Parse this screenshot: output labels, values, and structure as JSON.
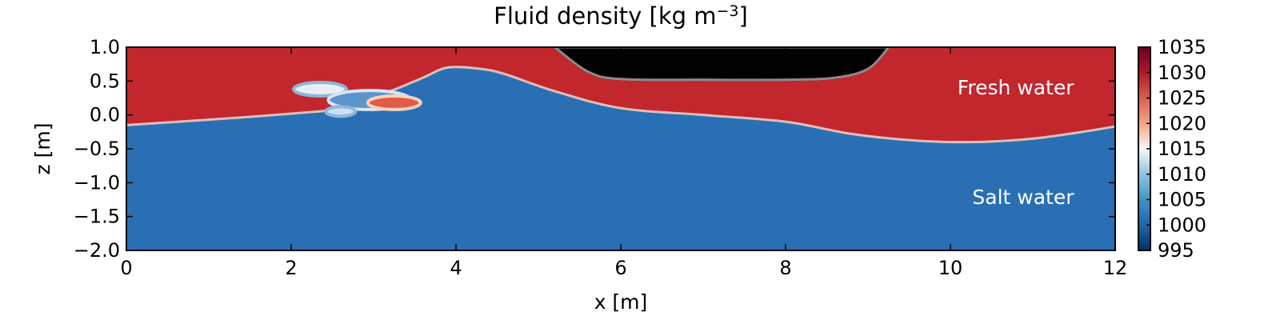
{
  "chart_data": {
    "type": "heatmap",
    "title_main": "Fluid density [kg m",
    "title_exp": "−3",
    "title_close": "]",
    "xlabel": "x [m]",
    "ylabel": "z [m]",
    "xlim": [
      0,
      12
    ],
    "ylim": [
      -2.0,
      1.0
    ],
    "xticks": [
      0,
      2,
      4,
      6,
      8,
      10,
      12
    ],
    "xtick_labels": [
      "0",
      "2",
      "4",
      "6",
      "8",
      "10",
      "12"
    ],
    "yticks": [
      1.0,
      0.5,
      0.0,
      -0.5,
      -1.0,
      -1.5,
      -2.0
    ],
    "ytick_labels": [
      "1.0",
      "0.5",
      "0.0",
      "−0.5",
      "−1.0",
      "−1.5",
      "−2.0"
    ],
    "colorbar": {
      "range": [
        995,
        1035
      ],
      "ticks": [
        1035,
        1030,
        1025,
        1020,
        1015,
        1010,
        1005,
        1000,
        995
      ],
      "tick_labels": [
        "1035",
        "1030",
        "1025",
        "1020",
        "1015",
        "1010",
        "1005",
        "1000",
        "995"
      ],
      "colors": [
        "#053061",
        "#2166ac",
        "#4393c3",
        "#92c5de",
        "#f7f7f7",
        "#f4a582",
        "#d6604d",
        "#b2182b",
        "#67001f"
      ]
    },
    "regions": {
      "upper_color": "#c1272d",
      "lower_color": "#2a6fb3",
      "obstacle_color": "#000000"
    },
    "interface": {
      "x": [
        0,
        1,
        2,
        2.6,
        3.2,
        3.6,
        3.9,
        4.3,
        4.6,
        5.2,
        6.0,
        7.0,
        8.0,
        8.8,
        9.6,
        10.3,
        11.0,
        11.6,
        12
      ],
      "z": [
        -0.15,
        -0.07,
        0.02,
        0.1,
        0.35,
        0.55,
        0.7,
        0.68,
        0.6,
        0.35,
        0.1,
        0.0,
        -0.1,
        -0.28,
        -0.38,
        -0.4,
        -0.35,
        -0.25,
        -0.17
      ]
    },
    "obstacle": {
      "x": [
        5.2,
        5.6,
        6.0,
        7.0,
        8.0,
        8.6,
        9.0,
        9.25
      ],
      "z": [
        1.0,
        0.64,
        0.53,
        0.52,
        0.52,
        0.55,
        0.68,
        1.0
      ]
    },
    "annotations": [
      {
        "label": "Fresh water",
        "x": 11.5,
        "z": 0.41
      },
      {
        "label": "Salt water",
        "x": 11.5,
        "z": -1.21
      }
    ]
  }
}
